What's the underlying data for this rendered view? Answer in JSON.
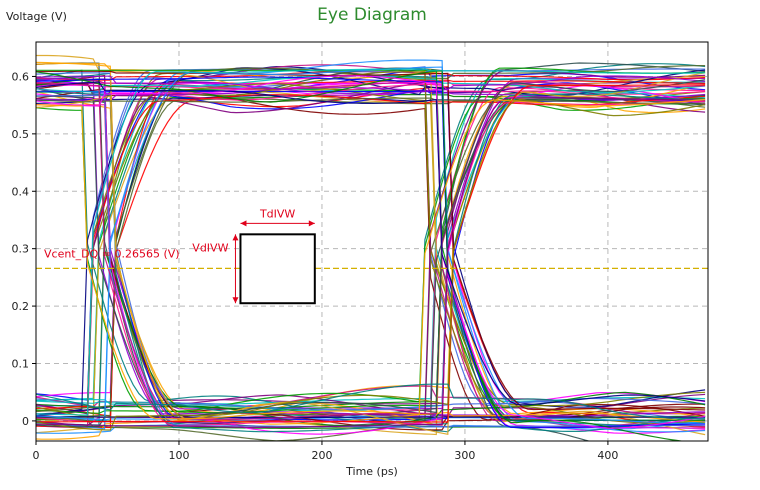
{
  "chart_data": {
    "type": "line",
    "title": "Eye Diagram",
    "xlabel": "Time (ps)",
    "ylabel": "Voltage (V)",
    "xlim": [
      0,
      470
    ],
    "ylim": [
      -0.035,
      0.66
    ],
    "x_ticks": [
      0,
      100,
      200,
      300,
      400
    ],
    "y_ticks": [
      0,
      0.1,
      0.2,
      0.3,
      0.4,
      0.5,
      0.6
    ],
    "y_tick_labels": [
      "0",
      "0.1",
      "0.2",
      "0.3",
      "0.4",
      "0.5",
      "0.6"
    ],
    "grid": true,
    "unit_interval_ps": 236,
    "first_crossing_ps": 46,
    "high_level_v": 0.585,
    "low_level_v": 0.012,
    "crossing_v": 0.265,
    "vcent": {
      "value": 0.26565,
      "label": "Vcent_DQ = 0.26565 (V)",
      "color": "#d4b000"
    },
    "mask": {
      "x0": 143,
      "x1": 195,
      "y0": 0.205,
      "y1": 0.325,
      "tdivw_label": "TdIVW",
      "vdivw_label": "VdIVW"
    },
    "colors": {
      "title": "#2e8b2e",
      "annotation": "#e0001a",
      "grid": "#b8b8b8",
      "traces": [
        "#0000ff",
        "#ff0000",
        "#008000",
        "#ff00ff",
        "#00c0c0",
        "#808000",
        "#800080",
        "#ffa500",
        "#000080",
        "#008080",
        "#800000",
        "#00a000",
        "#ff1493",
        "#4169e1",
        "#daa520",
        "#9400d3",
        "#1e90ff",
        "#556b2f",
        "#c71585",
        "#2f4f4f"
      ]
    }
  }
}
